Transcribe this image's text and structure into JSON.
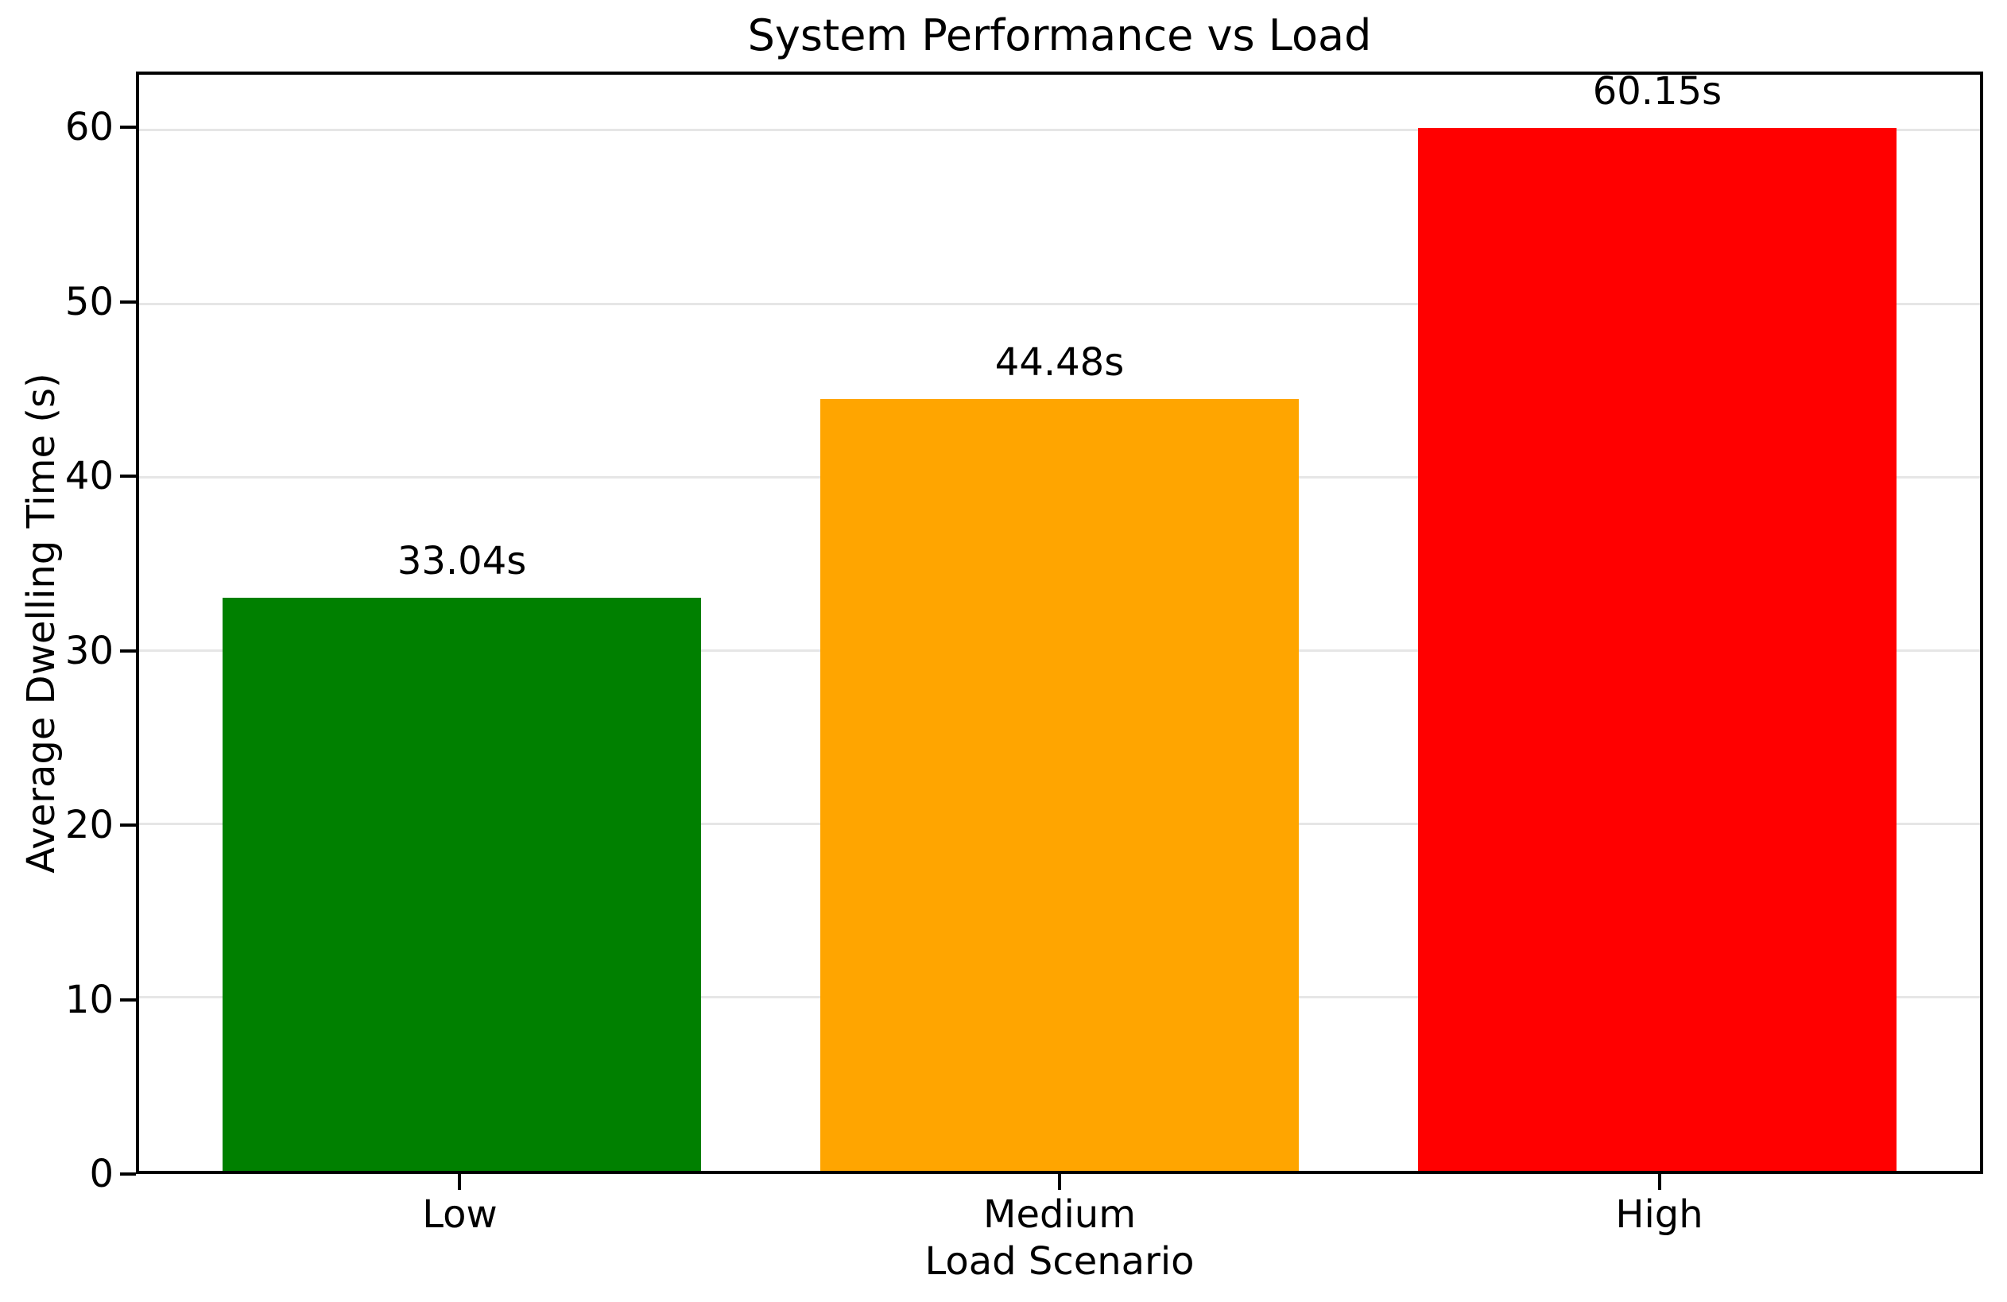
{
  "chart_data": {
    "type": "bar",
    "title": "System Performance vs Load",
    "xlabel": "Load Scenario",
    "ylabel": "Average Dwelling Time (s)",
    "categories": [
      "Low",
      "Medium",
      "High"
    ],
    "values": [
      33.04,
      44.48,
      60.15
    ],
    "value_labels": [
      "33.04s",
      "44.48s",
      "60.15s"
    ],
    "bar_colors": [
      "#008000",
      "#FFA500",
      "#FF0000"
    ],
    "yticks": [
      0,
      10,
      20,
      30,
      40,
      50,
      60
    ],
    "ylim": [
      0,
      63.2
    ],
    "xlim": [
      -0.54,
      2.54
    ],
    "bar_width": 0.8,
    "grid": "horizontal",
    "grid_color": "#e6e6e6",
    "background_color": "#ffffff",
    "text_color": "#000000",
    "legend": "none"
  }
}
